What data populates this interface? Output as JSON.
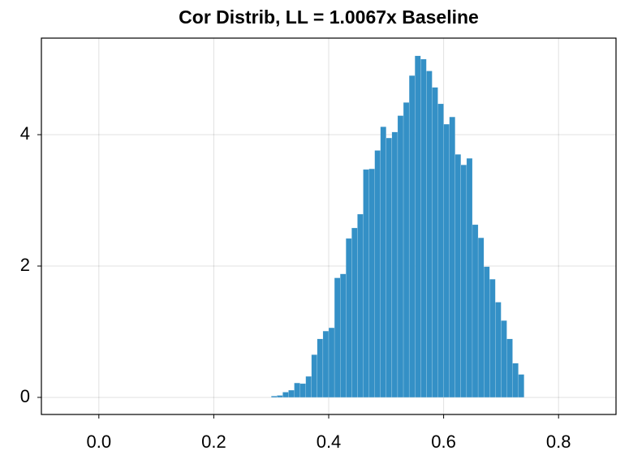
{
  "chart_data": {
    "type": "histogram",
    "title": "Cor Distrib, LL = 1.0067x Baseline",
    "bins": [
      0.3,
      0.31,
      0.32,
      0.33,
      0.34,
      0.35,
      0.36,
      0.37,
      0.38,
      0.39,
      0.4,
      0.41,
      0.42,
      0.43,
      0.44,
      0.45,
      0.46,
      0.47,
      0.48,
      0.49,
      0.5,
      0.51,
      0.52,
      0.53,
      0.54,
      0.55,
      0.56,
      0.57,
      0.58,
      0.59,
      0.6,
      0.61,
      0.62,
      0.63,
      0.64,
      0.65,
      0.66,
      0.67,
      0.68,
      0.69,
      0.7,
      0.71,
      0.72,
      0.73,
      0.74
    ],
    "values": [
      0.02,
      0.03,
      0.08,
      0.11,
      0.22,
      0.21,
      0.32,
      0.65,
      0.89,
      1.01,
      1.06,
      1.82,
      1.88,
      2.42,
      2.58,
      2.79,
      3.47,
      3.48,
      3.76,
      4.12,
      3.95,
      4.04,
      4.29,
      4.49,
      4.9,
      5.2,
      5.15,
      4.97,
      4.72,
      4.47,
      4.16,
      4.27,
      3.7,
      3.54,
      3.64,
      2.63,
      2.43,
      1.99,
      1.8,
      1.45,
      1.17,
      0.89,
      0.52,
      0.35
    ],
    "color": "#3490c6",
    "xlim": [
      -0.1,
      0.9
    ],
    "xticks": [
      {
        "value": 0,
        "label": "0.0"
      },
      0.2,
      0.4,
      0.6,
      0.8
    ],
    "ylim": [
      -0.26,
      5.47
    ],
    "yticks": [
      0,
      2,
      4
    ],
    "grid": true
  }
}
